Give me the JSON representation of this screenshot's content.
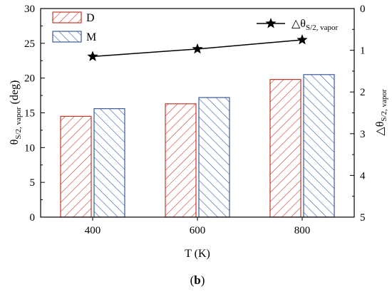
{
  "chart_data": {
    "type": "bar",
    "xlabel": "T (K)",
    "ylabel_main": "θ",
    "ylabel_sub": "S/2, vapor",
    "ylabel_unit": " (deg)",
    "y2label_main": "△θ",
    "y2label_sub": "S/2, vapor",
    "categories": [
      "400",
      "600",
      "800"
    ],
    "ylim": [
      0,
      30
    ],
    "yticks": [
      "0",
      "5",
      "10",
      "15",
      "20",
      "25",
      "30"
    ],
    "y2lim": [
      0,
      5
    ],
    "y2_inverted": true,
    "y2ticks": [
      "0",
      "1",
      "2",
      "3",
      "4",
      "5"
    ],
    "series": [
      {
        "name": "D",
        "type": "bar",
        "axis": "left",
        "hatch": "forward-diagonal",
        "color": "#c0392b",
        "values": [
          14.5,
          16.3,
          19.8
        ]
      },
      {
        "name": "M",
        "type": "bar",
        "axis": "left",
        "hatch": "back-diagonal",
        "color": "#3a5a9a",
        "values": [
          15.6,
          17.2,
          20.5
        ]
      },
      {
        "name": "△θS/2, vapor",
        "legend_main": "△θ",
        "legend_sub": "S/2, vapor",
        "type": "line",
        "axis": "right",
        "marker": "star",
        "color": "#000000",
        "values": [
          1.15,
          0.97,
          0.75
        ]
      }
    ],
    "legend_left": "top-left",
    "legend_right": "top-right",
    "grid": false
  },
  "caption": {
    "open": "(",
    "bold": "b",
    "close": ")"
  }
}
